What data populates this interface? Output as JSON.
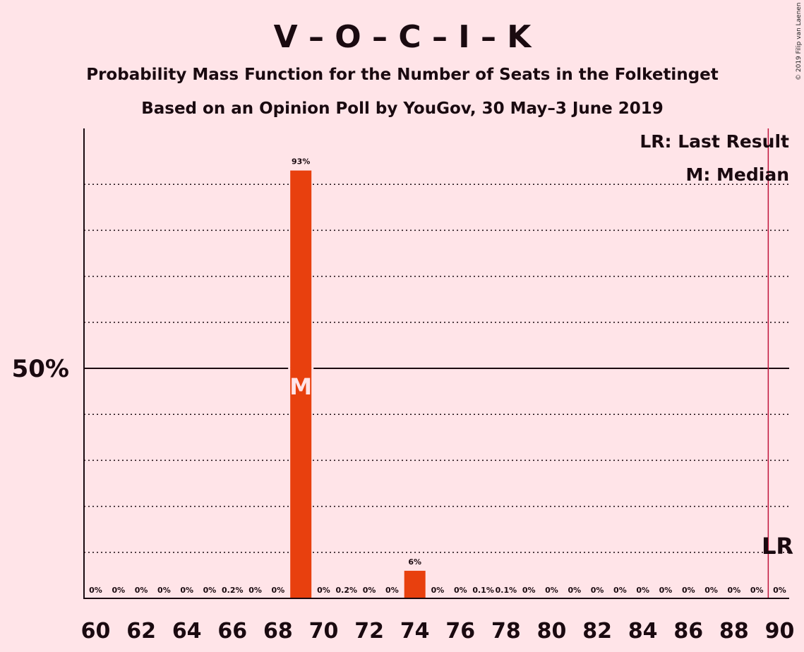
{
  "chart_data": {
    "type": "bar",
    "title": "V – O – C – I – K",
    "subtitle1": "Probability Mass Function for the Number of Seats in the Folketinget",
    "subtitle2": "Based on an Opinion Poll by YouGov, 30 May–3 June 2019",
    "credit": "© 2019 Filip van Laenen",
    "legend": [
      "LR: Last Result",
      "M: Median"
    ],
    "ylim": [
      0,
      100
    ],
    "y_ticks": [
      {
        "value": 50,
        "label": "50%"
      }
    ],
    "gridlines": [
      10,
      20,
      30,
      40,
      60,
      70,
      80,
      90
    ],
    "x_ticks": [
      60,
      62,
      64,
      66,
      68,
      70,
      72,
      74,
      76,
      78,
      80,
      82,
      84,
      86,
      88,
      90
    ],
    "x": [
      60,
      61,
      62,
      63,
      64,
      65,
      66,
      67,
      68,
      69,
      70,
      71,
      72,
      73,
      74,
      75,
      76,
      77,
      78,
      79,
      80,
      81,
      82,
      83,
      84,
      85,
      86,
      87,
      88,
      89,
      90
    ],
    "values": [
      0,
      0,
      0,
      0,
      0,
      0,
      0.2,
      0,
      0,
      93,
      0,
      0.2,
      0,
      0,
      6,
      0,
      0,
      0.1,
      0.1,
      0,
      0,
      0,
      0,
      0,
      0,
      0,
      0,
      0,
      0,
      0,
      0
    ],
    "labels": [
      "0%",
      "0%",
      "0%",
      "0%",
      "0%",
      "0%",
      "0.2%",
      "0%",
      "0%",
      "93%",
      "0%",
      "0.2%",
      "0%",
      "0%",
      "6%",
      "0%",
      "0%",
      "0.1%",
      "0.1%",
      "0%",
      "0%",
      "0%",
      "0%",
      "0%",
      "0%",
      "0%",
      "0%",
      "0%",
      "0%",
      "0%",
      "0%"
    ],
    "median": 69,
    "median_label": "M",
    "last_result": 89.5,
    "last_result_label": "LR",
    "colors": {
      "bar": "#e8400e",
      "lr_line": "#c0143c",
      "background": "#ffe4e8"
    }
  }
}
